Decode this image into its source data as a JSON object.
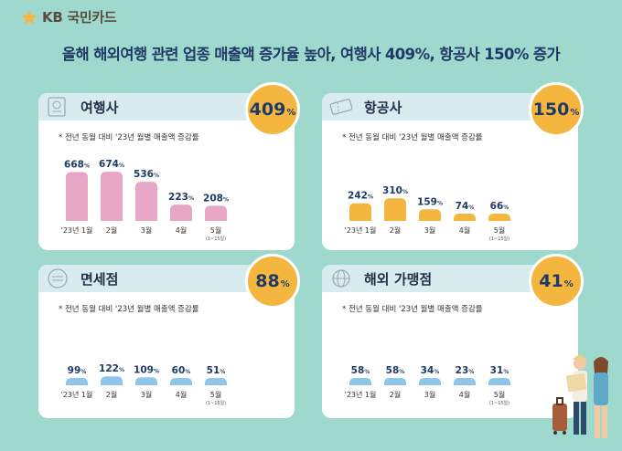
{
  "brand": {
    "name": "KB국민카드",
    "logo_mark": "KB",
    "logo_text": "국민카드",
    "star_color": "#f4b63f"
  },
  "headline": "올해 해외여행 관련 업종 매출액 증가율 높아, 여행사 409%, 항공사 150% 증가",
  "colors": {
    "background": "#9fd8cd",
    "badge": "#f4b63f",
    "pink": "#e8a6c7",
    "orange": "#f4b63f",
    "blue": "#8fc6e8"
  },
  "chart_data": [
    {
      "type": "bar",
      "title": "여행사",
      "badge_value": "409",
      "badge_unit": "%",
      "icon": "passport-icon",
      "note": "* 전년 동월 대비 '23년 월별 매출액 증감률",
      "categories": [
        "'23년 1월",
        "2월",
        "3월",
        "4월",
        "5월"
      ],
      "category_note": "(1~15일)",
      "values": [
        668,
        674,
        536,
        223,
        208
      ],
      "value_suffix": "%",
      "color": "#e8a6c7",
      "ylim": [
        0,
        700
      ]
    },
    {
      "type": "bar",
      "title": "항공사",
      "badge_value": "150",
      "badge_unit": "%",
      "icon": "ticket-icon",
      "note": "* 전년 동월 대비 '23년 월별 매출액 증감률",
      "categories": [
        "'23년 1월",
        "2월",
        "3월",
        "4월",
        "5월"
      ],
      "category_note": "(1~15일)",
      "values": [
        242,
        310,
        159,
        74,
        66
      ],
      "value_suffix": "%",
      "color": "#f4b63f",
      "ylim": [
        0,
        700
      ]
    },
    {
      "type": "bar",
      "title": "면세점",
      "badge_value": "88",
      "badge_unit": "%",
      "icon": "duty-free-icon",
      "note": "* 전년 동월 대비 '23년 월별 매출액 증감률",
      "categories": [
        "'23년 1월",
        "2월",
        "3월",
        "4월",
        "5월"
      ],
      "category_note": "(1~15일)",
      "values": [
        99,
        122,
        109,
        60,
        51
      ],
      "value_suffix": "%",
      "color": "#8fc6e8",
      "ylim": [
        0,
        700
      ]
    },
    {
      "type": "bar",
      "title": "해외 가맹점",
      "badge_value": "41",
      "badge_unit": "%",
      "icon": "globe-icon",
      "note": "* 전년 동월 대비 '23년 월별 매출액 증감률",
      "categories": [
        "'23년 1월",
        "2월",
        "3월",
        "4월",
        "5월"
      ],
      "category_note": "(1~15일)",
      "values": [
        58,
        58,
        34,
        23,
        31
      ],
      "value_suffix": "%",
      "color": "#8fc6e8",
      "ylim": [
        0,
        700
      ]
    }
  ]
}
